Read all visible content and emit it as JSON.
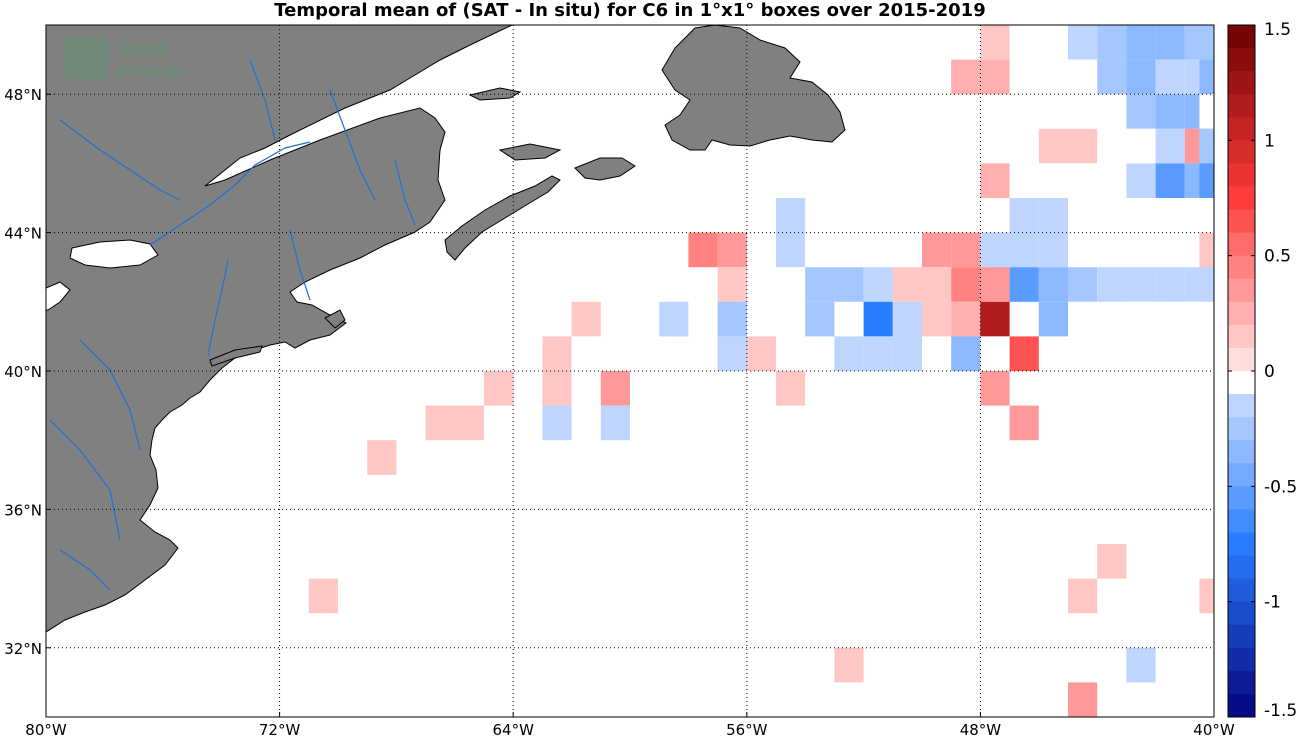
{
  "title": "Temporal mean of (SAT - In situ) for C6 in 1°x1° boxes over 2015-2019",
  "logo": {
    "line1": "smos",
    "line2": "pi-mep"
  },
  "colors": {
    "land": "#808080",
    "coast": "#000000",
    "rivers": "#1f6fd6",
    "grid": "#000000"
  },
  "chart_data": {
    "type": "heatmap",
    "lon_range": [
      -80,
      -40
    ],
    "lat_range": [
      30,
      50
    ],
    "x_ticks": [
      {
        "value": -80,
        "label": "80°W"
      },
      {
        "value": -72,
        "label": "72°W"
      },
      {
        "value": -64,
        "label": "64°W"
      },
      {
        "value": -56,
        "label": "56°W"
      },
      {
        "value": -48,
        "label": "48°W"
      },
      {
        "value": -40,
        "label": "40°W"
      }
    ],
    "y_ticks": [
      {
        "value": 32,
        "label": "32°N"
      },
      {
        "value": 36,
        "label": "36°N"
      },
      {
        "value": 40,
        "label": "40°N"
      },
      {
        "value": 44,
        "label": "44°N"
      },
      {
        "value": 48,
        "label": "48°N"
      }
    ],
    "grid": "dotted",
    "colorbar": {
      "min": -1.5,
      "max": 1.5,
      "levels": 30,
      "ticks": [
        {
          "value": 1.5,
          "label": "1.5"
        },
        {
          "value": 1,
          "label": "1"
        },
        {
          "value": 0.5,
          "label": "0.5"
        },
        {
          "value": 0,
          "label": "0"
        },
        {
          "value": -0.5,
          "label": "-0.5"
        },
        {
          "value": -1,
          "label": "-1"
        },
        {
          "value": -1.5,
          "label": "-1.5"
        }
      ]
    },
    "cells": [
      {
        "lon": -48,
        "lat": 49,
        "v": 0.15
      },
      {
        "lon": -47,
        "lat": 49,
        "v": 0
      },
      {
        "lon": -46,
        "lat": 49,
        "v": -0.05
      },
      {
        "lon": -45,
        "lat": 49,
        "v": -0.15
      },
      {
        "lon": -44,
        "lat": 49,
        "v": -0.25
      },
      {
        "lon": -43,
        "lat": 49,
        "v": -0.35
      },
      {
        "lon": -42,
        "lat": 49,
        "v": -0.4
      },
      {
        "lon": -41,
        "lat": 49,
        "v": -0.25
      },
      {
        "lon": -49,
        "lat": 48,
        "v": 0.25
      },
      {
        "lon": -48,
        "lat": 48,
        "v": 0.25
      },
      {
        "lon": -47,
        "lat": 48,
        "v": -0.05
      },
      {
        "lon": -45,
        "lat": 48,
        "v": -0.05
      },
      {
        "lon": -44,
        "lat": 48,
        "v": -0.25
      },
      {
        "lon": -43,
        "lat": 48,
        "v": -0.35
      },
      {
        "lon": -42,
        "lat": 48,
        "v": -0.2
      },
      {
        "lon": -41,
        "lat": 48,
        "v": -0.2
      },
      {
        "lon": -40.5,
        "lat": 48,
        "v": -0.3
      },
      {
        "lon": -43,
        "lat": 47,
        "v": -0.25
      },
      {
        "lon": -42,
        "lat": 47,
        "v": -0.3
      },
      {
        "lon": -41,
        "lat": 47,
        "v": -0.3
      },
      {
        "lon": -40.5,
        "lat": 47,
        "v": -0.05
      },
      {
        "lon": -46,
        "lat": 46,
        "v": 0.1
      },
      {
        "lon": -45,
        "lat": 46,
        "v": 0.1
      },
      {
        "lon": -43,
        "lat": 46,
        "v": -0.05
      },
      {
        "lon": -42,
        "lat": 46,
        "v": -0.15
      },
      {
        "lon": -41,
        "lat": 46,
        "v": 0.4
      },
      {
        "lon": -40.5,
        "lat": 46,
        "v": -0.25
      },
      {
        "lon": -48,
        "lat": 45,
        "v": 0.25
      },
      {
        "lon": -47,
        "lat": 45,
        "v": -0.05
      },
      {
        "lon": -46,
        "lat": 45,
        "v": -0.05
      },
      {
        "lon": -45,
        "lat": 45,
        "v": -0.05
      },
      {
        "lon": -44,
        "lat": 45,
        "v": -0.05
      },
      {
        "lon": -43,
        "lat": 45,
        "v": -0.2
      },
      {
        "lon": -42,
        "lat": 45,
        "v": -0.55
      },
      {
        "lon": -41,
        "lat": 45,
        "v": -0.3
      },
      {
        "lon": -40.5,
        "lat": 45,
        "v": -0.55
      },
      {
        "lon": -55,
        "lat": 44,
        "v": -0.2
      },
      {
        "lon": -48,
        "lat": 44,
        "v": -0.05
      },
      {
        "lon": -47,
        "lat": 44,
        "v": -0.15
      },
      {
        "lon": -46,
        "lat": 44,
        "v": -0.1
      },
      {
        "lon": -41,
        "lat": 44,
        "v": -0.05
      },
      {
        "lon": -58,
        "lat": 43,
        "v": 0.45
      },
      {
        "lon": -57,
        "lat": 43,
        "v": 0.35
      },
      {
        "lon": -55,
        "lat": 43,
        "v": -0.15
      },
      {
        "lon": -54,
        "lat": 43,
        "v": -0.05
      },
      {
        "lon": -53,
        "lat": 43,
        "v": -0.05
      },
      {
        "lon": -52,
        "lat": 43,
        "v": -0.05
      },
      {
        "lon": -50,
        "lat": 43,
        "v": 0.35
      },
      {
        "lon": -49,
        "lat": 43,
        "v": 0.35
      },
      {
        "lon": -48,
        "lat": 43,
        "v": -0.15
      },
      {
        "lon": -47,
        "lat": 43,
        "v": -0.1
      },
      {
        "lon": -46,
        "lat": 43,
        "v": -0.15
      },
      {
        "lon": -45,
        "lat": 43,
        "v": -0.05
      },
      {
        "lon": -40.5,
        "lat": 43,
        "v": 0.15
      },
      {
        "lon": -57,
        "lat": 42,
        "v": 0.15
      },
      {
        "lon": -55,
        "lat": 42,
        "v": -0.05
      },
      {
        "lon": -54,
        "lat": 42,
        "v": -0.25
      },
      {
        "lon": -53,
        "lat": 42,
        "v": -0.25
      },
      {
        "lon": -52,
        "lat": 42,
        "v": -0.15
      },
      {
        "lon": -51,
        "lat": 42,
        "v": 0.15
      },
      {
        "lon": -50,
        "lat": 42,
        "v": 0.15
      },
      {
        "lon": -49,
        "lat": 42,
        "v": 0.45
      },
      {
        "lon": -48,
        "lat": 42,
        "v": 0.3
      },
      {
        "lon": -47,
        "lat": 42,
        "v": -0.55
      },
      {
        "lon": -46,
        "lat": 42,
        "v": -0.4
      },
      {
        "lon": -45,
        "lat": 42,
        "v": -0.25
      },
      {
        "lon": -44,
        "lat": 42,
        "v": -0.1
      },
      {
        "lon": -43,
        "lat": 42,
        "v": -0.15
      },
      {
        "lon": -42,
        "lat": 42,
        "v": -0.15
      },
      {
        "lon": -41,
        "lat": 42,
        "v": -0.15
      },
      {
        "lon": -40.5,
        "lat": 42,
        "v": -0.15
      },
      {
        "lon": -62,
        "lat": 41,
        "v": 0.15
      },
      {
        "lon": -59,
        "lat": 41,
        "v": -0.15
      },
      {
        "lon": -58,
        "lat": 41,
        "v": -0.05
      },
      {
        "lon": -57,
        "lat": 41,
        "v": -0.25
      },
      {
        "lon": -54,
        "lat": 41,
        "v": -0.25
      },
      {
        "lon": -52,
        "lat": 41,
        "v": -0.75
      },
      {
        "lon": -51,
        "lat": 41,
        "v": -0.2
      },
      {
        "lon": -50,
        "lat": 41,
        "v": 0.1
      },
      {
        "lon": -49,
        "lat": 41,
        "v": 0.25
      },
      {
        "lon": -48,
        "lat": 41,
        "v": 1.1
      },
      {
        "lon": -46,
        "lat": 41,
        "v": -0.3
      },
      {
        "lon": -45,
        "lat": 41,
        "v": -0.05
      },
      {
        "lon": -43,
        "lat": 41,
        "v": -0.05
      },
      {
        "lon": -41,
        "lat": 41,
        "v": -0.05
      },
      {
        "lon": -64,
        "lat": 40,
        "v": -0.05
      },
      {
        "lon": -63,
        "lat": 40,
        "v": 0.1
      },
      {
        "lon": -62,
        "lat": 40,
        "v": -0.05
      },
      {
        "lon": -58,
        "lat": 40,
        "v": -0.05
      },
      {
        "lon": -57,
        "lat": 40,
        "v": -0.15
      },
      {
        "lon": -56,
        "lat": 40,
        "v": 0.1
      },
      {
        "lon": -53,
        "lat": 40,
        "v": -0.2
      },
      {
        "lon": -52,
        "lat": 40,
        "v": -0.1
      },
      {
        "lon": -51,
        "lat": 40,
        "v": -0.1
      },
      {
        "lon": -49,
        "lat": 40,
        "v": -0.4
      },
      {
        "lon": -48,
        "lat": 40,
        "v": -0.05
      },
      {
        "lon": -47,
        "lat": 40,
        "v": 0.6
      },
      {
        "lon": -65,
        "lat": 39,
        "v": 0.15
      },
      {
        "lon": -63,
        "lat": 39,
        "v": 0.1
      },
      {
        "lon": -61,
        "lat": 39,
        "v": 0.3
      },
      {
        "lon": -55,
        "lat": 39,
        "v": 0.1
      },
      {
        "lon": -54,
        "lat": 39,
        "v": -0.05
      },
      {
        "lon": -48,
        "lat": 39,
        "v": 0.4
      },
      {
        "lon": -67,
        "lat": 38,
        "v": 0.1
      },
      {
        "lon": -66,
        "lat": 38,
        "v": 0.1
      },
      {
        "lon": -63,
        "lat": 38,
        "v": -0.1
      },
      {
        "lon": -61,
        "lat": 38,
        "v": -0.1
      },
      {
        "lon": -47,
        "lat": 38,
        "v": 0.3
      },
      {
        "lon": -69,
        "lat": 37,
        "v": 0.15
      },
      {
        "lon": -44,
        "lat": 34,
        "v": 0.1
      },
      {
        "lon": -71,
        "lat": 33,
        "v": 0.15
      },
      {
        "lon": -45,
        "lat": 33,
        "v": 0.1
      },
      {
        "lon": -40.5,
        "lat": 33,
        "v": 0.1
      },
      {
        "lon": -53,
        "lat": 31,
        "v": 0.1
      },
      {
        "lon": -43,
        "lat": 31,
        "v": -0.1
      },
      {
        "lon": -45,
        "lat": 30,
        "v": 0.3
      }
    ]
  }
}
